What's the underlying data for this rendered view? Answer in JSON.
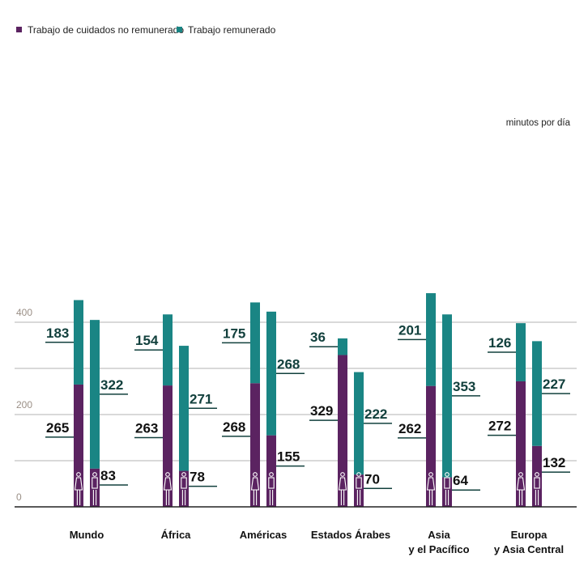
{
  "chart_data": {
    "type": "bar",
    "stacked": true,
    "unit_label": "minutos por día",
    "categories": [
      {
        "lines": [
          "Mundo"
        ]
      },
      {
        "lines": [
          "África"
        ]
      },
      {
        "lines": [
          "Américas"
        ]
      },
      {
        "lines": [
          "Estados Árabes"
        ]
      },
      {
        "lines": [
          "Asia",
          "y el Pacífico"
        ]
      },
      {
        "lines": [
          "Europa",
          "y Asia Central"
        ]
      }
    ],
    "bar_groups": [
      "mujeres",
      "hombres"
    ],
    "series": [
      {
        "name": "Trabajo de cuidados no remunerado",
        "color": "#5b2361",
        "values": {
          "mujeres": [
            265,
            263,
            268,
            329,
            262,
            272
          ],
          "hombres": [
            83,
            78,
            155,
            70,
            64,
            132
          ]
        }
      },
      {
        "name": "Trabajo remunerado",
        "color": "#1a8584",
        "values": {
          "mujeres": [
            183,
            154,
            175,
            36,
            201,
            126
          ],
          "hombres": [
            322,
            271,
            268,
            222,
            353,
            227
          ]
        }
      }
    ],
    "yticks": [
      0,
      200,
      400
    ],
    "ylim": [
      0,
      480
    ],
    "grid": true,
    "legend_position": "top-left",
    "icons": [
      "woman-icon",
      "man-icon"
    ],
    "label_color": "#12403d"
  }
}
